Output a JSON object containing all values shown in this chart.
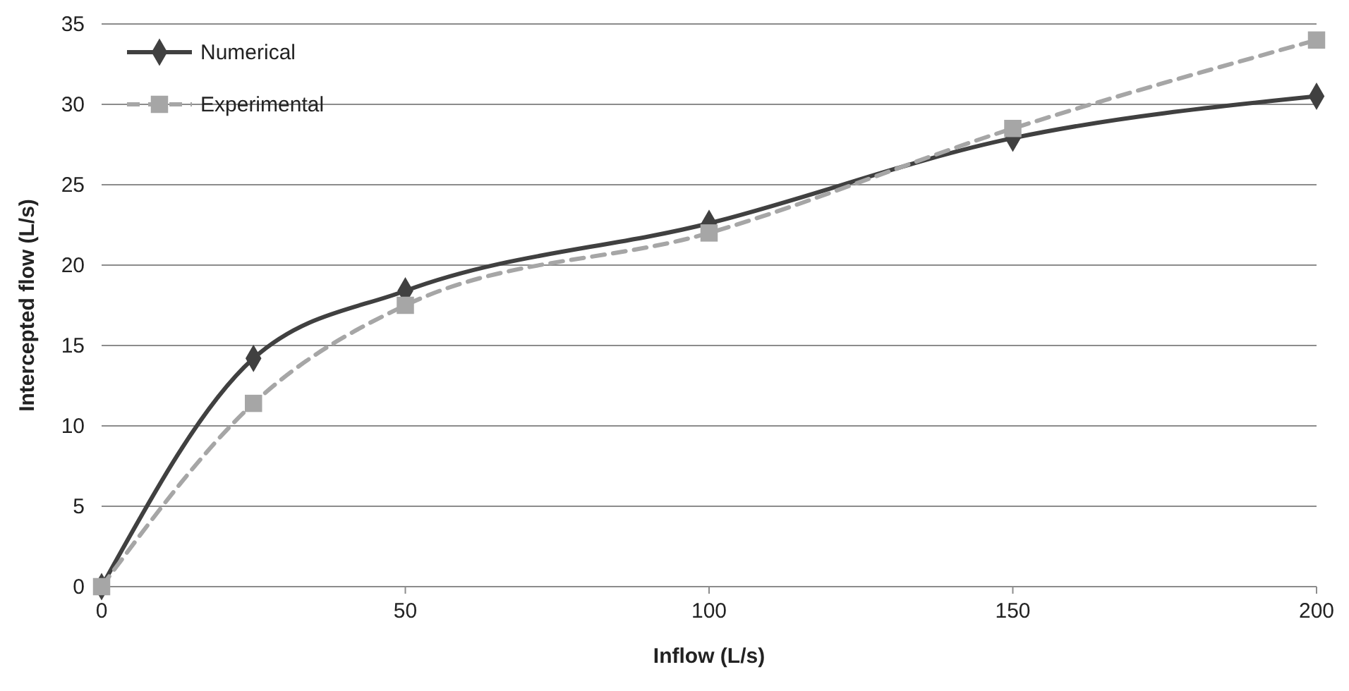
{
  "chart_data": {
    "type": "line",
    "xlabel": "Inflow (L/s)",
    "ylabel": "Intercepted flow (L/s)",
    "xlim": [
      0,
      200
    ],
    "xticks": [
      0,
      50,
      100,
      150,
      200
    ],
    "ylim": [
      0,
      35
    ],
    "yticks": [
      0,
      5,
      10,
      15,
      20,
      25,
      30,
      35
    ],
    "grid": "y",
    "legend": "top left",
    "series": [
      {
        "name": "Numerical",
        "color": "#404040",
        "x": [
          0,
          25,
          50,
          100,
          150,
          200
        ],
        "values": [
          0,
          14.2,
          18.4,
          22.6,
          27.9,
          30.5
        ],
        "marker": "diamond",
        "line_style": "solid"
      },
      {
        "name": "Experimental",
        "color": "#a6a6a6",
        "x": [
          0,
          25,
          50,
          100,
          150,
          200
        ],
        "values": [
          0,
          11.4,
          17.5,
          22,
          28.5,
          34
        ],
        "marker": "square",
        "line_style": "dashed"
      }
    ]
  }
}
